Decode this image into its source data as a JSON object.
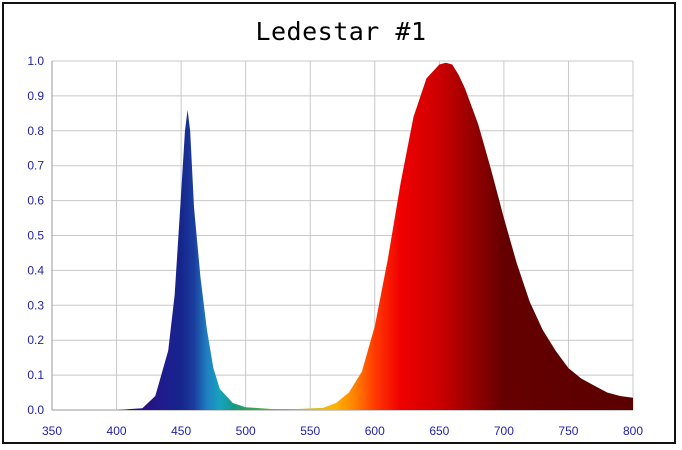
{
  "chart_data": {
    "type": "area",
    "title": "Ledestar #1",
    "xlabel": "",
    "ylabel": "",
    "xlim": [
      350,
      800
    ],
    "ylim": [
      0,
      1.0
    ],
    "x_ticks": [
      "350",
      "400",
      "450",
      "500",
      "550",
      "600",
      "650",
      "700",
      "750",
      "800"
    ],
    "y_ticks": [
      "0.0",
      "0.1",
      "0.2",
      "0.3",
      "0.4",
      "0.5",
      "0.6",
      "0.7",
      "0.8",
      "0.9",
      "1.0"
    ],
    "grid": true,
    "x": [
      350,
      400,
      420,
      430,
      440,
      445,
      450,
      453,
      455,
      457,
      460,
      465,
      470,
      475,
      480,
      490,
      500,
      520,
      540,
      560,
      570,
      580,
      590,
      600,
      610,
      620,
      630,
      640,
      650,
      655,
      660,
      665,
      670,
      680,
      690,
      700,
      710,
      720,
      730,
      740,
      750,
      760,
      770,
      780,
      790,
      800
    ],
    "y": [
      0.0,
      0.0,
      0.005,
      0.04,
      0.17,
      0.33,
      0.62,
      0.8,
      0.86,
      0.8,
      0.58,
      0.38,
      0.23,
      0.12,
      0.06,
      0.02,
      0.008,
      0.003,
      0.003,
      0.006,
      0.02,
      0.05,
      0.11,
      0.24,
      0.43,
      0.65,
      0.84,
      0.95,
      0.99,
      0.995,
      0.99,
      0.96,
      0.92,
      0.82,
      0.69,
      0.55,
      0.42,
      0.31,
      0.23,
      0.17,
      0.12,
      0.09,
      0.07,
      0.05,
      0.04,
      0.035
    ],
    "colors": {
      "axis_text": "#1f1fa8",
      "grid": "#c8c8c8",
      "frame": "#111111"
    }
  }
}
